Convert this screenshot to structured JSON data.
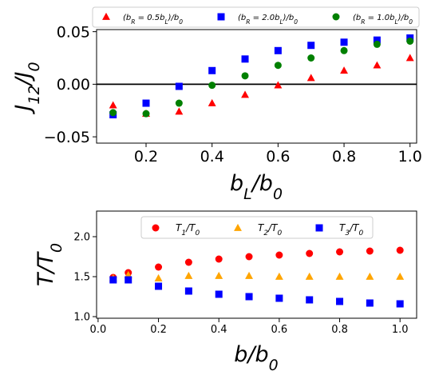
{
  "chart_data": [
    {
      "type": "scatter",
      "title": "",
      "xlabel": "b_L/b_0",
      "ylabel": "J_12/J_0",
      "xlim": [
        0.05,
        1.02
      ],
      "ylim": [
        -0.056,
        0.052
      ],
      "xticks": [
        0.2,
        0.4,
        0.6,
        0.8,
        1.0
      ],
      "xtick_labels": [
        "0.2",
        "0.4",
        "0.6",
        "0.8",
        "1.0"
      ],
      "yticks": [
        0.05,
        0.0,
        -0.05
      ],
      "ytick_labels": [
        "0.05",
        "0.00",
        "−0.05"
      ],
      "hline_y": 0.0,
      "legend_position": "top, outside axes",
      "series": [
        {
          "name": "(b_R = 0.5b_L)/b_0",
          "marker": "triangle",
          "color": "#ff0000",
          "x": [
            0.1,
            0.2,
            0.3,
            0.4,
            0.5,
            0.6,
            0.7,
            0.8,
            0.9,
            1.0
          ],
          "y": [
            -0.02,
            -0.028,
            -0.026,
            -0.018,
            -0.01,
            -0.001,
            0.006,
            0.013,
            0.018,
            0.025
          ]
        },
        {
          "name": "(b_R = 2.0b_L)/b_0",
          "marker": "square",
          "color": "#0000ff",
          "x": [
            0.1,
            0.2,
            0.3,
            0.4,
            0.5,
            0.6,
            0.7,
            0.8,
            0.9,
            1.0
          ],
          "y": [
            -0.029,
            -0.018,
            -0.002,
            0.013,
            0.024,
            0.032,
            0.037,
            0.04,
            0.042,
            0.044
          ]
        },
        {
          "name": "(b_R = 1.0b_L)/b_0",
          "marker": "circle",
          "color": "#008000",
          "x": [
            0.1,
            0.2,
            0.3,
            0.4,
            0.5,
            0.6,
            0.7,
            0.8,
            0.9,
            1.0
          ],
          "y": [
            -0.027,
            -0.028,
            -0.018,
            -0.001,
            0.008,
            0.018,
            0.025,
            0.032,
            0.038,
            0.041
          ]
        }
      ]
    },
    {
      "type": "scatter",
      "title": "",
      "xlabel": "b/b_0",
      "ylabel": "T/T_0",
      "xlim": [
        -0.005,
        1.055
      ],
      "ylim": [
        0.98,
        2.32
      ],
      "xticks": [
        0.0,
        0.2,
        0.4,
        0.6,
        0.8,
        1.0
      ],
      "xtick_labels": [
        "0.0",
        "0.2",
        "0.4",
        "0.6",
        "0.8",
        "1.0"
      ],
      "yticks": [
        1.0,
        1.5,
        2.0
      ],
      "ytick_labels": [
        "1.0",
        "1.5",
        "2.0"
      ],
      "legend_position": "top-center, inside axes",
      "series": [
        {
          "name": "T_1/T_0",
          "marker": "circle",
          "color": "#ff0000",
          "x": [
            0.05,
            0.1,
            0.2,
            0.3,
            0.4,
            0.5,
            0.6,
            0.7,
            0.8,
            0.9,
            1.0
          ],
          "y": [
            1.49,
            1.55,
            1.62,
            1.68,
            1.72,
            1.75,
            1.77,
            1.79,
            1.81,
            1.82,
            1.83
          ]
        },
        {
          "name": "T_2/T_0",
          "marker": "triangle",
          "color": "#ffa500",
          "x": [
            0.05,
            0.1,
            0.2,
            0.3,
            0.4,
            0.5,
            0.6,
            0.7,
            0.8,
            0.9,
            1.0
          ],
          "y": [
            1.48,
            1.52,
            1.48,
            1.51,
            1.51,
            1.51,
            1.5,
            1.5,
            1.5,
            1.5,
            1.5
          ]
        },
        {
          "name": "T_3/T_0",
          "marker": "square",
          "color": "#0000ff",
          "x": [
            0.05,
            0.1,
            0.2,
            0.3,
            0.4,
            0.5,
            0.6,
            0.7,
            0.8,
            0.9,
            1.0
          ],
          "y": [
            1.46,
            1.46,
            1.38,
            1.32,
            1.28,
            1.25,
            1.23,
            1.21,
            1.19,
            1.17,
            1.16
          ]
        }
      ]
    }
  ]
}
